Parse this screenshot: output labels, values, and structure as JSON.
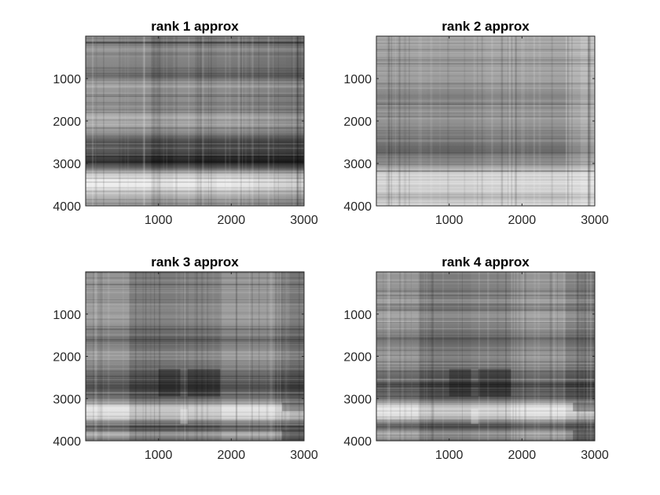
{
  "chart_data": [
    {
      "type": "heatmap",
      "title": "rank 1 approx",
      "colormap": "gray",
      "xlim": [
        0,
        3000
      ],
      "ylim": [
        0,
        4000
      ],
      "y_reversed": true,
      "xticks": [
        1000,
        2000,
        3000
      ],
      "yticks": [
        1000,
        2000,
        3000,
        4000
      ],
      "xticklabels": [
        "1000",
        "2000",
        "3000"
      ],
      "yticklabels": [
        "1000",
        "2000",
        "3000",
        "4000"
      ],
      "rank": 1,
      "row_profile": [
        {
          "y": 0,
          "v": 0.5
        },
        {
          "y": 300,
          "v": 0.52
        },
        {
          "y": 700,
          "v": 0.48
        },
        {
          "y": 950,
          "v": 0.38
        },
        {
          "y": 1100,
          "v": 0.55
        },
        {
          "y": 1500,
          "v": 0.55
        },
        {
          "y": 1700,
          "v": 0.48
        },
        {
          "y": 1900,
          "v": 0.68
        },
        {
          "y": 2150,
          "v": 0.6
        },
        {
          "y": 2300,
          "v": 0.5
        },
        {
          "y": 2450,
          "v": 0.3
        },
        {
          "y": 2700,
          "v": 0.28
        },
        {
          "y": 2950,
          "v": 0.12
        },
        {
          "y": 3100,
          "v": 0.35
        },
        {
          "y": 3250,
          "v": 0.75
        },
        {
          "y": 3400,
          "v": 0.95
        },
        {
          "y": 3600,
          "v": 0.9
        },
        {
          "y": 3750,
          "v": 0.7
        },
        {
          "y": 3900,
          "v": 0.6
        },
        {
          "y": 4000,
          "v": 0.58
        }
      ],
      "column_profile": [
        {
          "x": 0,
          "v": 0.55
        },
        {
          "x": 500,
          "v": 0.58
        },
        {
          "x": 900,
          "v": 0.5
        },
        {
          "x": 1000,
          "v": 0.4
        },
        {
          "x": 1200,
          "v": 0.55
        },
        {
          "x": 1500,
          "v": 0.5
        },
        {
          "x": 1800,
          "v": 0.45
        },
        {
          "x": 2000,
          "v": 0.55
        },
        {
          "x": 2300,
          "v": 0.42
        },
        {
          "x": 2600,
          "v": 0.5
        },
        {
          "x": 2750,
          "v": 0.38
        },
        {
          "x": 3000,
          "v": 0.48
        }
      ]
    },
    {
      "type": "heatmap",
      "title": "rank 2 approx",
      "colormap": "gray",
      "xlim": [
        0,
        3000
      ],
      "ylim": [
        0,
        4000
      ],
      "y_reversed": true,
      "xticks": [
        1000,
        2000,
        3000
      ],
      "yticks": [
        1000,
        2000,
        3000,
        4000
      ],
      "xticklabels": [
        "1000",
        "2000",
        "3000"
      ],
      "yticklabels": [
        "1000",
        "2000",
        "3000",
        "4000"
      ],
      "rank": 2,
      "row_profile": [
        {
          "y": 0,
          "v": 0.6
        },
        {
          "y": 500,
          "v": 0.62
        },
        {
          "y": 1000,
          "v": 0.6
        },
        {
          "y": 1500,
          "v": 0.45
        },
        {
          "y": 2000,
          "v": 0.55
        },
        {
          "y": 2400,
          "v": 0.45
        },
        {
          "y": 2700,
          "v": 0.35
        },
        {
          "y": 3000,
          "v": 0.55
        },
        {
          "y": 3300,
          "v": 0.85
        },
        {
          "y": 3600,
          "v": 0.8
        },
        {
          "y": 3800,
          "v": 0.7
        },
        {
          "y": 4000,
          "v": 0.85
        }
      ],
      "column_profile": [
        {
          "x": 0,
          "v": 0.55
        },
        {
          "x": 700,
          "v": 0.55
        },
        {
          "x": 1350,
          "v": 0.52
        },
        {
          "x": 1500,
          "v": 0.6
        },
        {
          "x": 2000,
          "v": 0.55
        },
        {
          "x": 2600,
          "v": 0.58
        },
        {
          "x": 2800,
          "v": 0.75
        },
        {
          "x": 3000,
          "v": 0.7
        }
      ]
    },
    {
      "type": "heatmap",
      "title": "rank 3 approx",
      "colormap": "gray",
      "xlim": [
        0,
        3000
      ],
      "ylim": [
        0,
        4000
      ],
      "y_reversed": true,
      "xticks": [
        1000,
        2000,
        3000
      ],
      "yticks": [
        1000,
        2000,
        3000,
        4000
      ],
      "xticklabels": [
        "1000",
        "2000",
        "3000"
      ],
      "yticklabels": [
        "1000",
        "2000",
        "3000",
        "4000"
      ],
      "rank": 3,
      "row_profile": [
        {
          "y": 0,
          "v": 0.55
        },
        {
          "y": 600,
          "v": 0.55
        },
        {
          "y": 1100,
          "v": 0.62
        },
        {
          "y": 1600,
          "v": 0.4
        },
        {
          "y": 2000,
          "v": 0.6
        },
        {
          "y": 2350,
          "v": 0.4
        },
        {
          "y": 2700,
          "v": 0.25
        },
        {
          "y": 3000,
          "v": 0.4
        },
        {
          "y": 3200,
          "v": 0.9
        },
        {
          "y": 3450,
          "v": 0.85
        },
        {
          "y": 3650,
          "v": 0.25
        },
        {
          "y": 3850,
          "v": 0.7
        },
        {
          "y": 4000,
          "v": 0.4
        }
      ],
      "column_profile": [
        {
          "x": 0,
          "v": 0.55
        },
        {
          "x": 600,
          "v": 0.55
        },
        {
          "x": 1000,
          "v": 0.3
        },
        {
          "x": 1300,
          "v": 0.55
        },
        {
          "x": 1500,
          "v": 0.35
        },
        {
          "x": 1850,
          "v": 0.55
        },
        {
          "x": 2600,
          "v": 0.55
        },
        {
          "x": 2800,
          "v": 0.35
        },
        {
          "x": 3000,
          "v": 0.45
        }
      ]
    },
    {
      "type": "heatmap",
      "title": "rank 4 approx",
      "colormap": "gray",
      "xlim": [
        0,
        3000
      ],
      "ylim": [
        0,
        4000
      ],
      "y_reversed": true,
      "xticks": [
        1000,
        2000,
        3000
      ],
      "yticks": [
        1000,
        2000,
        3000,
        4000
      ],
      "xticklabels": [
        "1000",
        "2000",
        "3000"
      ],
      "yticklabels": [
        "1000",
        "2000",
        "3000",
        "4000"
      ],
      "rank": 4,
      "row_profile": [
        {
          "y": 0,
          "v": 0.55
        },
        {
          "y": 600,
          "v": 0.55
        },
        {
          "y": 1100,
          "v": 0.62
        },
        {
          "y": 1600,
          "v": 0.42
        },
        {
          "y": 2000,
          "v": 0.6
        },
        {
          "y": 2350,
          "v": 0.42
        },
        {
          "y": 2700,
          "v": 0.25
        },
        {
          "y": 3000,
          "v": 0.4
        },
        {
          "y": 3200,
          "v": 0.9
        },
        {
          "y": 3450,
          "v": 0.85
        },
        {
          "y": 3650,
          "v": 0.25
        },
        {
          "y": 3850,
          "v": 0.72
        },
        {
          "y": 4000,
          "v": 0.4
        }
      ],
      "column_profile": [
        {
          "x": 0,
          "v": 0.55
        },
        {
          "x": 600,
          "v": 0.55
        },
        {
          "x": 1000,
          "v": 0.3
        },
        {
          "x": 1300,
          "v": 0.55
        },
        {
          "x": 1500,
          "v": 0.35
        },
        {
          "x": 1850,
          "v": 0.55
        },
        {
          "x": 2600,
          "v": 0.55
        },
        {
          "x": 2800,
          "v": 0.35
        },
        {
          "x": 3000,
          "v": 0.45
        }
      ]
    }
  ]
}
